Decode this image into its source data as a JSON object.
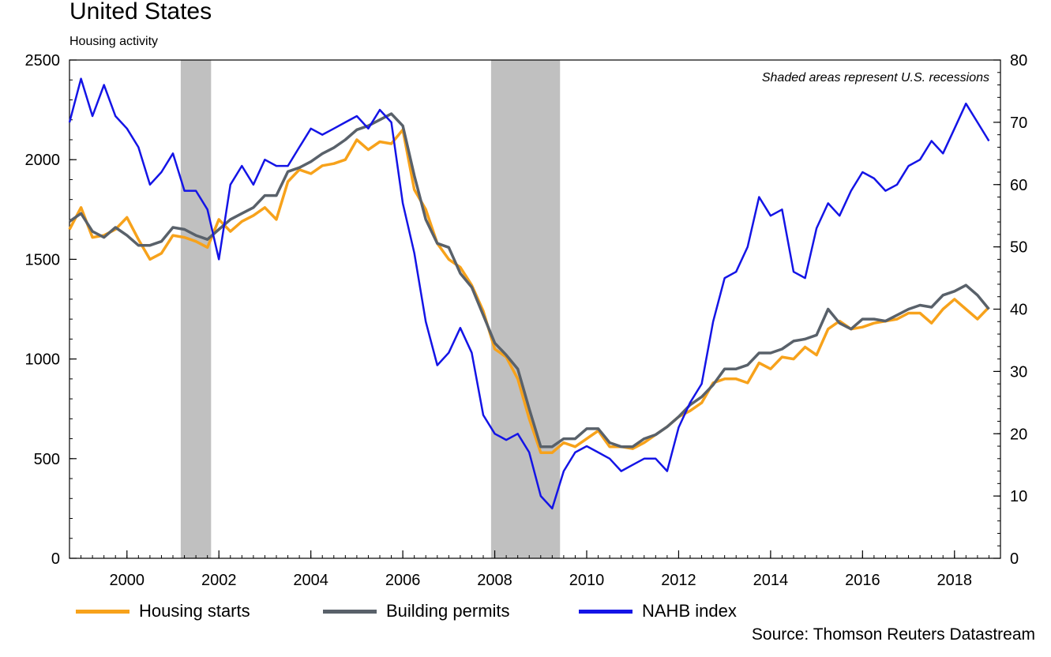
{
  "title": "United States",
  "subtitle": "Housing activity",
  "note": "Shaded areas represent U.S. recessions",
  "source": "Source: Thomson Reuters Datastream",
  "colors": {
    "starts": "#f7a21b",
    "permits": "#59616a",
    "nahb": "#1414e6",
    "recession": "#c0c0c0"
  },
  "chart_data": {
    "type": "line",
    "title": "United States",
    "subtitle": "Housing activity",
    "x_range": [
      1998.75,
      2019.0
    ],
    "x_ticks": [
      "2000",
      "2002",
      "2004",
      "2006",
      "2008",
      "2010",
      "2012",
      "2014",
      "2016",
      "2018"
    ],
    "y_left": {
      "range": [
        0,
        2500
      ],
      "ticks": [
        "0",
        "500",
        "1000",
        "1500",
        "2000",
        "2500"
      ]
    },
    "y_right": {
      "range": [
        0,
        80
      ],
      "ticks": [
        "0",
        "10",
        "20",
        "30",
        "40",
        "50",
        "60",
        "70",
        "80"
      ]
    },
    "recessions": [
      [
        2001.17,
        2001.83
      ],
      [
        2007.92,
        2009.42
      ]
    ],
    "legend_position": "bottom",
    "series": [
      {
        "name": "Housing starts",
        "axis": "left",
        "x": [
          1998.75,
          1999.0,
          1999.25,
          1999.5,
          1999.75,
          2000.0,
          2000.25,
          2000.5,
          2000.75,
          2001.0,
          2001.25,
          2001.5,
          2001.75,
          2002.0,
          2002.25,
          2002.5,
          2002.75,
          2003.0,
          2003.25,
          2003.5,
          2003.75,
          2004.0,
          2004.25,
          2004.5,
          2004.75,
          2005.0,
          2005.25,
          2005.5,
          2005.75,
          2006.0,
          2006.25,
          2006.5,
          2006.75,
          2007.0,
          2007.25,
          2007.5,
          2007.75,
          2008.0,
          2008.25,
          2008.5,
          2008.75,
          2009.0,
          2009.25,
          2009.5,
          2009.75,
          2010.0,
          2010.25,
          2010.5,
          2010.75,
          2011.0,
          2011.25,
          2011.5,
          2011.75,
          2012.0,
          2012.25,
          2012.5,
          2012.75,
          2013.0,
          2013.25,
          2013.5,
          2013.75,
          2014.0,
          2014.25,
          2014.5,
          2014.75,
          2015.0,
          2015.25,
          2015.5,
          2015.75,
          2016.0,
          2016.25,
          2016.5,
          2016.75,
          2017.0,
          2017.25,
          2017.5,
          2017.75,
          2018.0,
          2018.25,
          2018.5,
          2018.75
        ],
        "values": [
          1650,
          1760,
          1610,
          1620,
          1650,
          1710,
          1600,
          1500,
          1530,
          1620,
          1610,
          1590,
          1560,
          1700,
          1640,
          1690,
          1720,
          1760,
          1700,
          1890,
          1950,
          1930,
          1970,
          1980,
          2000,
          2100,
          2050,
          2090,
          2080,
          2150,
          1850,
          1750,
          1580,
          1500,
          1460,
          1370,
          1240,
          1050,
          1010,
          900,
          700,
          530,
          530,
          580,
          560,
          600,
          640,
          560,
          560,
          550,
          580,
          620,
          660,
          710,
          740,
          780,
          880,
          900,
          900,
          880,
          980,
          950,
          1010,
          1000,
          1060,
          1020,
          1150,
          1190,
          1150,
          1160,
          1180,
          1190,
          1200,
          1230,
          1230,
          1180,
          1250,
          1300,
          1250,
          1200,
          1260
        ]
      },
      {
        "name": "Building permits",
        "axis": "left",
        "x": [
          1998.75,
          1999.0,
          1999.25,
          1999.5,
          1999.75,
          2000.0,
          2000.25,
          2000.5,
          2000.75,
          2001.0,
          2001.25,
          2001.5,
          2001.75,
          2002.0,
          2002.25,
          2002.5,
          2002.75,
          2003.0,
          2003.25,
          2003.5,
          2003.75,
          2004.0,
          2004.25,
          2004.5,
          2004.75,
          2005.0,
          2005.25,
          2005.5,
          2005.75,
          2006.0,
          2006.25,
          2006.5,
          2006.75,
          2007.0,
          2007.25,
          2007.5,
          2007.75,
          2008.0,
          2008.25,
          2008.5,
          2008.75,
          2009.0,
          2009.25,
          2009.5,
          2009.75,
          2010.0,
          2010.25,
          2010.5,
          2010.75,
          2011.0,
          2011.25,
          2011.5,
          2011.75,
          2012.0,
          2012.25,
          2012.5,
          2012.75,
          2013.0,
          2013.25,
          2013.5,
          2013.75,
          2014.0,
          2014.25,
          2014.5,
          2014.75,
          2015.0,
          2015.25,
          2015.5,
          2015.75,
          2016.0,
          2016.25,
          2016.5,
          2016.75,
          2017.0,
          2017.25,
          2017.5,
          2017.75,
          2018.0,
          2018.25,
          2018.5,
          2018.75
        ],
        "values": [
          1690,
          1730,
          1640,
          1610,
          1660,
          1620,
          1570,
          1570,
          1590,
          1660,
          1650,
          1620,
          1600,
          1650,
          1700,
          1730,
          1760,
          1820,
          1820,
          1940,
          1960,
          1990,
          2030,
          2060,
          2100,
          2150,
          2170,
          2200,
          2230,
          2170,
          1920,
          1700,
          1580,
          1560,
          1430,
          1360,
          1220,
          1080,
          1020,
          950,
          750,
          560,
          560,
          600,
          600,
          650,
          650,
          580,
          560,
          560,
          600,
          620,
          660,
          710,
          770,
          810,
          870,
          950,
          950,
          970,
          1030,
          1030,
          1050,
          1090,
          1100,
          1120,
          1250,
          1180,
          1150,
          1200,
          1200,
          1190,
          1220,
          1250,
          1270,
          1260,
          1320,
          1340,
          1370,
          1320,
          1250
        ]
      },
      {
        "name": "NAHB index",
        "axis": "right",
        "x": [
          1998.75,
          1999.0,
          1999.25,
          1999.5,
          1999.75,
          2000.0,
          2000.25,
          2000.5,
          2000.75,
          2001.0,
          2001.25,
          2001.5,
          2001.75,
          2002.0,
          2002.25,
          2002.5,
          2002.75,
          2003.0,
          2003.25,
          2003.5,
          2003.75,
          2004.0,
          2004.25,
          2004.5,
          2004.75,
          2005.0,
          2005.25,
          2005.5,
          2005.75,
          2006.0,
          2006.25,
          2006.5,
          2006.75,
          2007.0,
          2007.25,
          2007.5,
          2007.75,
          2008.0,
          2008.25,
          2008.5,
          2008.75,
          2009.0,
          2009.25,
          2009.5,
          2009.75,
          2010.0,
          2010.25,
          2010.5,
          2010.75,
          2011.0,
          2011.25,
          2011.5,
          2011.75,
          2012.0,
          2012.25,
          2012.5,
          2012.75,
          2013.0,
          2013.25,
          2013.5,
          2013.75,
          2014.0,
          2014.25,
          2014.5,
          2014.75,
          2015.0,
          2015.25,
          2015.5,
          2015.75,
          2016.0,
          2016.25,
          2016.5,
          2016.75,
          2017.0,
          2017.25,
          2017.5,
          2017.75,
          2018.0,
          2018.25,
          2018.5,
          2018.75
        ],
        "values": [
          70,
          77,
          71,
          76,
          71,
          69,
          66,
          60,
          62,
          65,
          59,
          59,
          56,
          48,
          60,
          63,
          60,
          64,
          63,
          63,
          66,
          69,
          68,
          69,
          70,
          71,
          69,
          72,
          70,
          57,
          49,
          38,
          31,
          33,
          37,
          33,
          23,
          20,
          19,
          20,
          17,
          10,
          8,
          14,
          17,
          18,
          17,
          16,
          14,
          15,
          16,
          16,
          14,
          21,
          25,
          28,
          38,
          45,
          46,
          50,
          58,
          55,
          56,
          46,
          45,
          53,
          57,
          55,
          59,
          62,
          61,
          59,
          60,
          63,
          64,
          67,
          65,
          69,
          73,
          70,
          67
        ]
      }
    ]
  }
}
